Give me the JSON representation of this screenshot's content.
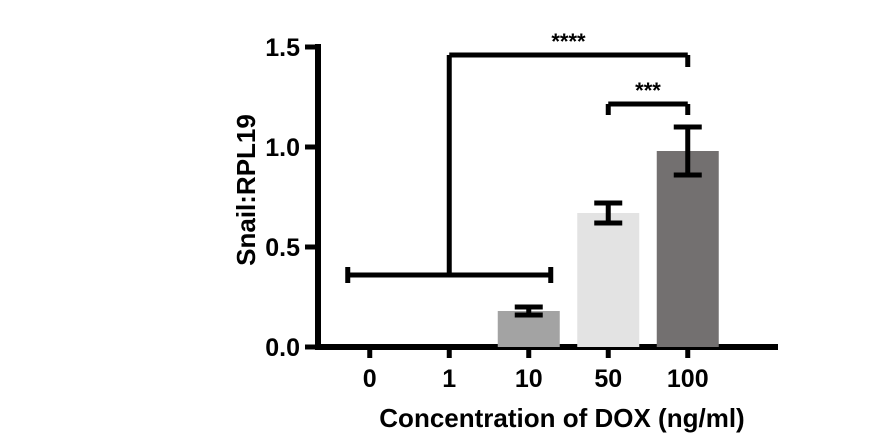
{
  "chart_data": {
    "type": "bar",
    "categories": [
      "0",
      "1",
      "10",
      "50",
      "100"
    ],
    "series": [
      {
        "values": [
          0.0,
          0.0,
          0.18,
          0.67,
          0.98
        ],
        "error": [
          0.0,
          0.0,
          0.02,
          0.05,
          0.12
        ],
        "colors": [
          "#ffffff",
          "#ffffff",
          "#a3a3a3",
          "#e3e3e3",
          "#737070"
        ]
      }
    ],
    "xlabel": "Concentration of DOX (ng/ml)",
    "ylabel": "Snail:RPL19",
    "ylim": [
      0,
      1.5
    ],
    "yticks": [
      "0.0",
      "0.5",
      "1.0",
      "1.5"
    ],
    "grid": false,
    "significance": [
      {
        "label": "****",
        "from": "0",
        "to": "100",
        "group_from": [
          "0",
          "10"
        ]
      },
      {
        "label": "***",
        "from": "50",
        "to": "100"
      }
    ]
  }
}
